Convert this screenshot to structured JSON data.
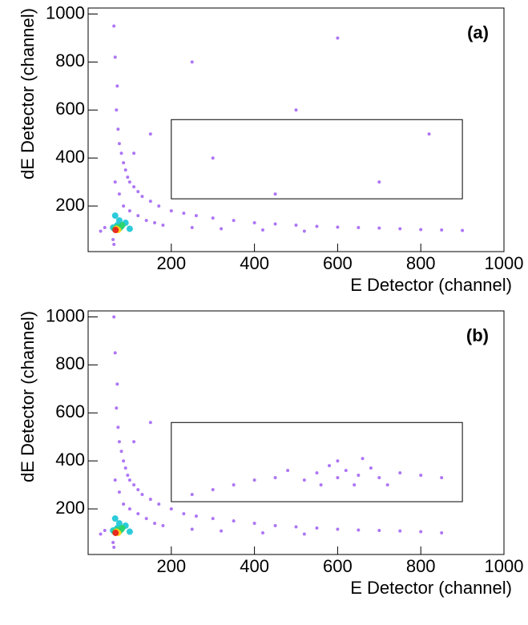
{
  "chart_data": [
    {
      "type": "scatter",
      "label": "(a)",
      "xlabel": "E Detector (channel)",
      "ylabel": "dE Detector (channel)",
      "xlim": [
        0,
        1000
      ],
      "ylim": [
        10,
        1025
      ],
      "xticks": [
        200,
        400,
        600,
        800,
        1000
      ],
      "yticks": [
        200,
        400,
        600,
        800,
        1000
      ],
      "gate": {
        "x": [
          200,
          900
        ],
        "y": [
          230,
          560
        ]
      },
      "series": [
        {
          "color": "#8a3cf0",
          "x": [
            62,
            65,
            70,
            68,
            72,
            75,
            80,
            85,
            90,
            95,
            100,
            110,
            120,
            130,
            150,
            170,
            200,
            230,
            260,
            300,
            350,
            400,
            450,
            500,
            550,
            600,
            650,
            700,
            750,
            800,
            850,
            900,
            65,
            75,
            85,
            100,
            120,
            140,
            160,
            180,
            250,
            320,
            420,
            520,
            40,
            30,
            60,
            62,
            300,
            500,
            700,
            450,
            820,
            250,
            600,
            150,
            110
          ],
          "y": [
            950,
            820,
            700,
            600,
            520,
            460,
            420,
            380,
            350,
            320,
            300,
            280,
            260,
            240,
            220,
            200,
            180,
            170,
            160,
            150,
            140,
            130,
            125,
            120,
            115,
            112,
            110,
            108,
            105,
            102,
            100,
            98,
            300,
            250,
            200,
            180,
            160,
            140,
            130,
            120,
            110,
            105,
            100,
            95,
            110,
            95,
            60,
            40,
            400,
            600,
            300,
            250,
            500,
            800,
            900,
            500,
            420
          ]
        },
        {
          "color": "#21c8d8",
          "x": [
            70,
            80,
            60,
            90,
            75,
            100,
            65
          ],
          "y": [
            120,
            115,
            110,
            130,
            140,
            105,
            160
          ]
        },
        {
          "color": "#2bd46a",
          "x": [
            70,
            76,
            64,
            82
          ],
          "y": [
            112,
            108,
            104,
            120
          ]
        },
        {
          "color": "#ffd21f",
          "x": [
            68,
            72
          ],
          "y": [
            105,
            100
          ]
        },
        {
          "color": "#e8231f",
          "x": [
            66
          ],
          "y": [
            100
          ]
        }
      ]
    },
    {
      "type": "scatter",
      "label": "(b)",
      "xlabel": "E Detector (channel)",
      "ylabel": "dE Detector (channel)",
      "xlim": [
        0,
        1000
      ],
      "ylim": [
        10,
        1025
      ],
      "xticks": [
        200,
        400,
        600,
        800,
        1000
      ],
      "yticks": [
        200,
        400,
        600,
        800,
        1000
      ],
      "gate": {
        "x": [
          200,
          900
        ],
        "y": [
          230,
          560
        ]
      },
      "series": [
        {
          "color": "#8a3cf0",
          "x": [
            62,
            65,
            70,
            68,
            72,
            75,
            80,
            85,
            90,
            95,
            100,
            110,
            120,
            130,
            150,
            170,
            200,
            230,
            260,
            300,
            350,
            400,
            450,
            500,
            550,
            600,
            650,
            700,
            750,
            800,
            850,
            65,
            75,
            85,
            100,
            120,
            140,
            160,
            180,
            250,
            320,
            420,
            520,
            40,
            30,
            60,
            62,
            550,
            600,
            620,
            650,
            580,
            680,
            700,
            520,
            640,
            600,
            750,
            800,
            480,
            560,
            660,
            720,
            450,
            400,
            350,
            300,
            250,
            850,
            150,
            110
          ],
          "y": [
            1000,
            850,
            720,
            620,
            540,
            480,
            440,
            400,
            370,
            340,
            320,
            300,
            280,
            260,
            240,
            220,
            200,
            180,
            170,
            160,
            150,
            140,
            130,
            125,
            120,
            115,
            112,
            110,
            108,
            105,
            100,
            320,
            270,
            220,
            200,
            180,
            160,
            140,
            130,
            115,
            108,
            100,
            95,
            110,
            95,
            60,
            40,
            350,
            330,
            360,
            340,
            380,
            370,
            330,
            320,
            300,
            400,
            350,
            340,
            360,
            300,
            410,
            300,
            330,
            320,
            300,
            280,
            260,
            330,
            560,
            480
          ]
        },
        {
          "color": "#21c8d8",
          "x": [
            70,
            80,
            60,
            90,
            75,
            100,
            65
          ],
          "y": [
            120,
            115,
            110,
            130,
            140,
            105,
            160
          ]
        },
        {
          "color": "#2bd46a",
          "x": [
            70,
            76,
            64,
            82
          ],
          "y": [
            112,
            108,
            104,
            120
          ]
        },
        {
          "color": "#ffd21f",
          "x": [
            68,
            72
          ],
          "y": [
            105,
            100
          ]
        },
        {
          "color": "#e8231f",
          "x": [
            66
          ],
          "y": [
            100
          ]
        }
      ]
    }
  ]
}
